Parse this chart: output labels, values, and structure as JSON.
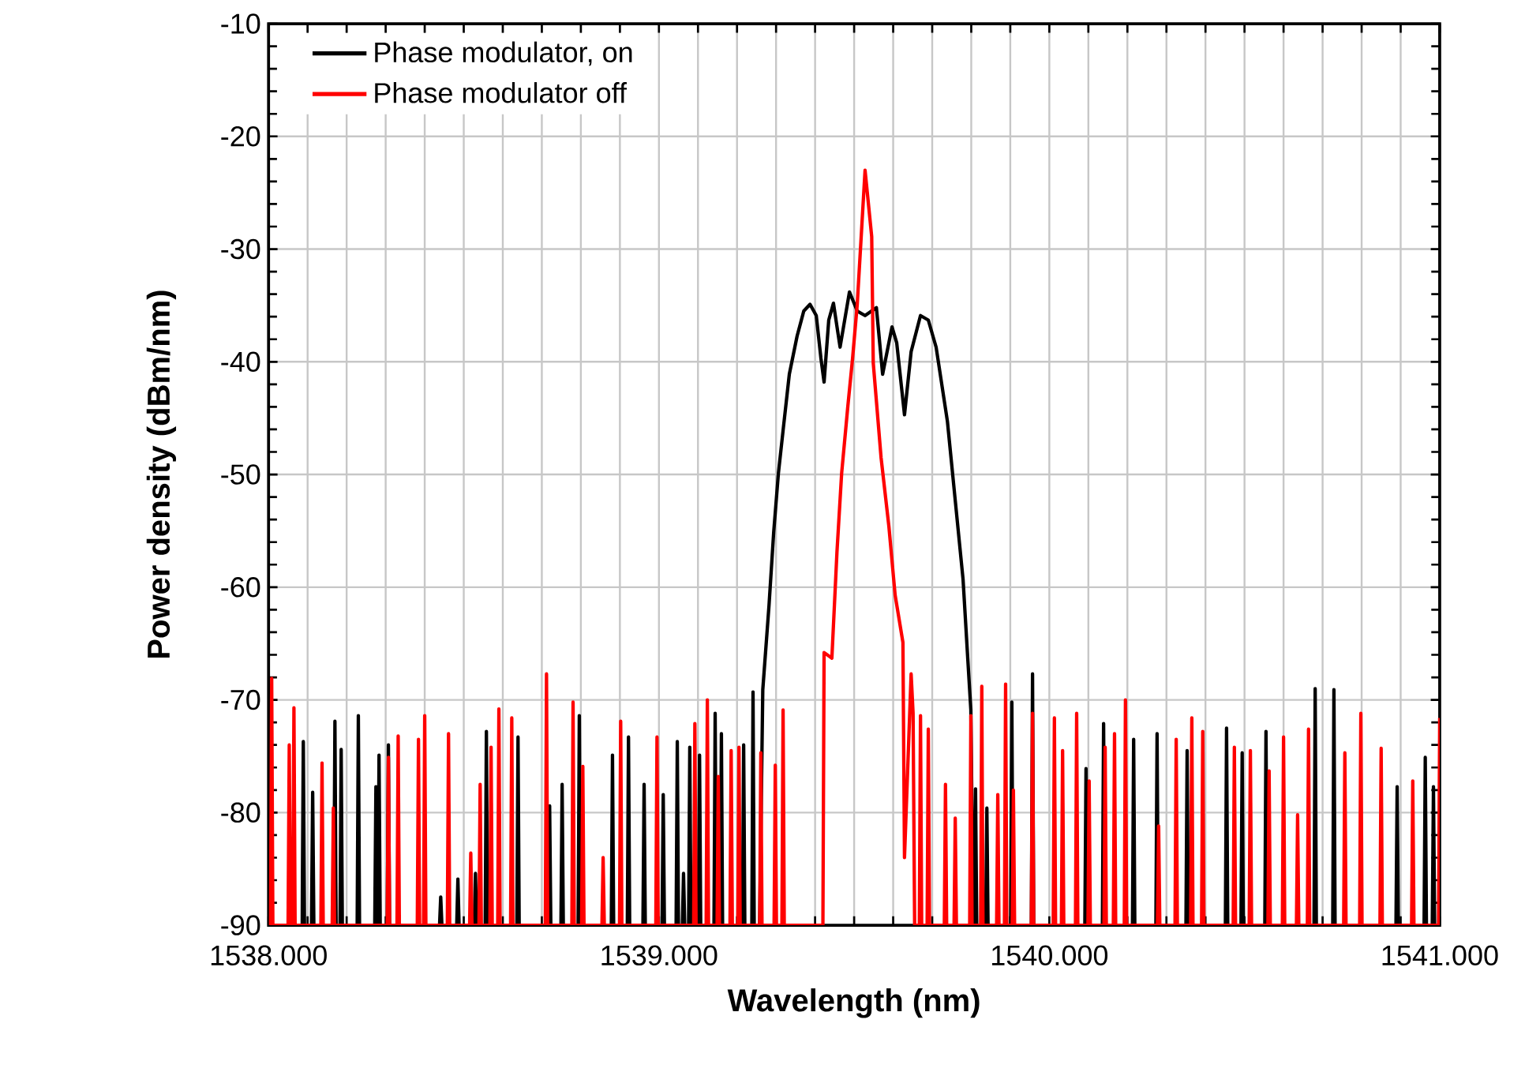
{
  "chart_data": {
    "type": "line",
    "xlabel": "Wavelength (nm)",
    "ylabel": "Power density (dBm/nm)",
    "xlim": [
      1538,
      1541
    ],
    "ylim": [
      -90,
      -10
    ],
    "xticks": [
      {
        "value": 1538.0,
        "label": "1538.000"
      },
      {
        "value": 1538.1,
        "label": null
      },
      {
        "value": 1538.2,
        "label": null
      },
      {
        "value": 1538.3,
        "label": null
      },
      {
        "value": 1538.4,
        "label": null
      },
      {
        "value": 1538.5,
        "label": null
      },
      {
        "value": 1538.6,
        "label": null
      },
      {
        "value": 1538.7,
        "label": null
      },
      {
        "value": 1538.8,
        "label": null
      },
      {
        "value": 1538.9,
        "label": null
      },
      {
        "value": 1539.0,
        "label": "1539.000"
      },
      {
        "value": 1539.1,
        "label": null
      },
      {
        "value": 1539.2,
        "label": null
      },
      {
        "value": 1539.3,
        "label": null
      },
      {
        "value": 1539.4,
        "label": null
      },
      {
        "value": 1539.5,
        "label": null
      },
      {
        "value": 1539.6,
        "label": null
      },
      {
        "value": 1539.7,
        "label": null
      },
      {
        "value": 1539.8,
        "label": null
      },
      {
        "value": 1539.9,
        "label": null
      },
      {
        "value": 1540.0,
        "label": "1540.000"
      },
      {
        "value": 1540.1,
        "label": null
      },
      {
        "value": 1540.2,
        "label": null
      },
      {
        "value": 1540.3,
        "label": null
      },
      {
        "value": 1540.4,
        "label": null
      },
      {
        "value": 1540.5,
        "label": null
      },
      {
        "value": 1540.6,
        "label": null
      },
      {
        "value": 1540.7,
        "label": null
      },
      {
        "value": 1540.8,
        "label": null
      },
      {
        "value": 1540.9,
        "label": null
      },
      {
        "value": 1541.0,
        "label": "1541.000"
      }
    ],
    "yticks": [
      -90,
      -80,
      -70,
      -60,
      -50,
      -40,
      -30,
      -20,
      -10
    ],
    "grid": true,
    "legend": "top left",
    "line_style": "solid",
    "series": [
      {
        "name": "Phase modulator, on",
        "color": "#000000",
        "x": [
          1538.086,
          1538.089,
          1538.092,
          1538.11,
          1538.113,
          1538.116,
          1538.167,
          1538.17,
          1538.173,
          1538.183,
          1538.186,
          1538.189,
          1538.227,
          1538.23,
          1538.233,
          1538.272,
          1538.275,
          1538.278,
          1538.28,
          1538.283,
          1538.286,
          1538.304,
          1538.307,
          1538.31,
          1538.438,
          1538.441,
          1538.444,
          1538.482,
          1538.485,
          1538.488,
          1538.527,
          1538.53,
          1538.533,
          1538.555,
          1538.558,
          1538.561,
          1538.636,
          1538.639,
          1538.642,
          1538.717,
          1538.72,
          1538.723,
          1538.749,
          1538.752,
          1538.755,
          1538.793,
          1538.796,
          1538.799,
          1538.878,
          1538.881,
          1538.884,
          1538.919,
          1538.922,
          1538.925,
          1538.959,
          1538.962,
          1538.965,
          1539.008,
          1539.011,
          1539.014,
          1539.044,
          1539.047,
          1539.05,
          1539.06,
          1539.063,
          1539.066,
          1539.076,
          1539.079,
          1539.082,
          1539.101,
          1539.104,
          1539.107,
          1539.141,
          1539.144,
          1539.147,
          1539.157,
          1539.16,
          1539.163,
          1539.214,
          1539.217,
          1539.22,
          1539.238,
          1539.241,
          1539.244,
          1539.258,
          1539.266,
          1539.282,
          1539.294,
          1539.306,
          1539.318,
          1539.334,
          1539.354,
          1539.371,
          1539.387,
          1539.403,
          1539.415,
          1539.423,
          1539.435,
          1539.447,
          1539.464,
          1539.488,
          1539.508,
          1539.528,
          1539.557,
          1539.573,
          1539.597,
          1539.609,
          1539.629,
          1539.646,
          1539.67,
          1539.69,
          1539.71,
          1539.739,
          1539.759,
          1539.779,
          1539.791,
          1539.799,
          1539.805,
          1539.808,
          1539.811,
          1539.814,
          1539.837,
          1539.84,
          1539.843,
          1539.901,
          1539.904,
          1539.907,
          1539.954,
          1539.957,
          1539.96,
          1540.091,
          1540.094,
          1540.097,
          1540.136,
          1540.139,
          1540.142,
          1540.213,
          1540.216,
          1540.219,
          1540.273,
          1540.276,
          1540.279,
          1540.35,
          1540.353,
          1540.356,
          1540.451,
          1540.454,
          1540.457,
          1540.491,
          1540.494,
          1540.497,
          1540.552,
          1540.555,
          1540.558,
          1540.678,
          1540.681,
          1540.684,
          1540.726,
          1540.729,
          1540.732,
          1540.888,
          1540.891,
          1540.894,
          1540.96,
          1540.963,
          1540.966,
          1540.981,
          1540.984,
          1540.987
        ],
        "values": [
          -90,
          -73.7,
          -90,
          -90,
          -78.2,
          -90,
          -90,
          -71.9,
          -90,
          -90,
          -74.4,
          -90,
          -90,
          -71.4,
          -90,
          -90,
          -77.7,
          -90,
          -90,
          -74.9,
          -90,
          -90,
          -74.0,
          -90,
          -90,
          -87.5,
          -90,
          -90,
          -85.9,
          -90,
          -90,
          -85.4,
          -90,
          -90,
          -72.8,
          -90,
          -90,
          -73.3,
          -90,
          -90,
          -79.4,
          -90,
          -90,
          -77.5,
          -90,
          -90,
          -71.4,
          -90,
          -90,
          -74.9,
          -90,
          -90,
          -73.3,
          -90,
          -90,
          -77.5,
          -90,
          -90,
          -78.4,
          -90,
          -90,
          -73.7,
          -90,
          -90,
          -85.4,
          -90,
          -90,
          -74.2,
          -90,
          -90,
          -74.9,
          -90,
          -90,
          -71.2,
          -90,
          -90,
          -73.0,
          -90,
          -90,
          -74.0,
          -90,
          -90,
          -69.3,
          -90,
          -90,
          -69.1,
          -61.6,
          -55.1,
          -49.9,
          -46.1,
          -41.1,
          -37.7,
          -35.5,
          -34.9,
          -35.9,
          -39.7,
          -41.8,
          -36.3,
          -34.8,
          -38.7,
          -33.8,
          -35.5,
          -35.9,
          -35.2,
          -41.1,
          -36.9,
          -38.3,
          -44.7,
          -39.1,
          -35.9,
          -36.3,
          -38.7,
          -45.3,
          -52.3,
          -59.3,
          -66.3,
          -70.9,
          -90,
          -90,
          -77.9,
          -90,
          -90,
          -79.6,
          -90,
          -90,
          -70.2,
          -90,
          -90,
          -67.7,
          -90,
          -90,
          -76.1,
          -90,
          -90,
          -72.1,
          -90,
          -90,
          -73.5,
          -90,
          -90,
          -73.0,
          -90,
          -90,
          -74.5,
          -90,
          -90,
          -72.5,
          -90,
          -90,
          -74.7,
          -90,
          -90,
          -72.8,
          -90,
          -90,
          -69.0,
          -90,
          -90,
          -69.1,
          -90,
          -90,
          -77.7,
          -90,
          -90,
          -75.1,
          -90,
          -90,
          -77.7,
          -90
        ]
      },
      {
        "name": "Phase modulator off",
        "color": "#ff0000",
        "x": [
          1538.005,
          1538.008,
          1538.011,
          1538.05,
          1538.053,
          1538.056,
          1538.062,
          1538.065,
          1538.068,
          1538.134,
          1538.137,
          1538.14,
          1538.163,
          1538.166,
          1538.169,
          1538.304,
          1538.307,
          1538.31,
          1538.329,
          1538.332,
          1538.335,
          1538.381,
          1538.384,
          1538.387,
          1538.397,
          1538.4,
          1538.403,
          1538.458,
          1538.461,
          1538.464,
          1538.515,
          1538.518,
          1538.521,
          1538.539,
          1538.542,
          1538.545,
          1538.567,
          1538.57,
          1538.573,
          1538.587,
          1538.59,
          1538.593,
          1538.62,
          1538.623,
          1538.626,
          1538.709,
          1538.712,
          1538.715,
          1538.777,
          1538.78,
          1538.783,
          1538.802,
          1538.805,
          1538.808,
          1538.854,
          1538.857,
          1538.86,
          1538.899,
          1538.902,
          1538.905,
          1538.992,
          1538.995,
          1538.998,
          1539.089,
          1539.092,
          1539.095,
          1539.121,
          1539.124,
          1539.127,
          1539.149,
          1539.152,
          1539.155,
          1539.182,
          1539.185,
          1539.188,
          1539.202,
          1539.205,
          1539.208,
          1539.258,
          1539.261,
          1539.264,
          1539.295,
          1539.298,
          1539.301,
          1539.315,
          1539.318,
          1539.321,
          1539.42,
          1539.423,
          1539.443,
          1539.456,
          1539.468,
          1539.484,
          1539.496,
          1539.508,
          1539.528,
          1539.545,
          1539.549,
          1539.569,
          1539.589,
          1539.605,
          1539.625,
          1539.629,
          1539.646,
          1539.651,
          1539.655,
          1539.667,
          1539.67,
          1539.673,
          1539.687,
          1539.69,
          1539.693,
          1539.731,
          1539.734,
          1539.737,
          1539.756,
          1539.759,
          1539.762,
          1539.796,
          1539.799,
          1539.802,
          1539.824,
          1539.827,
          1539.83,
          1539.865,
          1539.868,
          1539.871,
          1539.885,
          1539.888,
          1539.891,
          1539.905,
          1539.908,
          1539.911,
          1539.954,
          1539.957,
          1539.96,
          1540.01,
          1540.013,
          1540.016,
          1540.031,
          1540.034,
          1540.037,
          1540.067,
          1540.07,
          1540.073,
          1540.099,
          1540.102,
          1540.105,
          1540.14,
          1540.143,
          1540.146,
          1540.164,
          1540.167,
          1540.17,
          1540.192,
          1540.195,
          1540.198,
          1540.277,
          1540.28,
          1540.283,
          1540.322,
          1540.325,
          1540.328,
          1540.362,
          1540.365,
          1540.368,
          1540.39,
          1540.393,
          1540.396,
          1540.471,
          1540.474,
          1540.477,
          1540.512,
          1540.515,
          1540.518,
          1540.56,
          1540.563,
          1540.566,
          1540.597,
          1540.6,
          1540.603,
          1540.633,
          1540.636,
          1540.639,
          1540.661,
          1540.664,
          1540.667,
          1540.754,
          1540.757,
          1540.76,
          1540.795,
          1540.798,
          1540.801,
          1540.847,
          1540.85,
          1540.853,
          1540.928,
          1540.931,
          1540.934,
          1540.997,
          1541.0
        ],
        "values": [
          -90,
          -68.1,
          -90,
          -90,
          -74.0,
          -90,
          -90,
          -70.7,
          -90,
          -90,
          -75.6,
          -90,
          -90,
          -79.6,
          -90,
          -90,
          -75.1,
          -90,
          -90,
          -73.2,
          -90,
          -90,
          -73.5,
          -90,
          -90,
          -71.4,
          -90,
          -90,
          -73.0,
          -90,
          -90,
          -83.6,
          -90,
          -90,
          -77.5,
          -90,
          -90,
          -74.2,
          -90,
          -90,
          -70.8,
          -90,
          -90,
          -71.6,
          -90,
          -90,
          -67.7,
          -90,
          -90,
          -70.2,
          -90,
          -90,
          -75.9,
          -90,
          -90,
          -84.0,
          -90,
          -90,
          -71.9,
          -90,
          -90,
          -73.3,
          -90,
          -90,
          -72.1,
          -90,
          -90,
          -70.0,
          -90,
          -90,
          -76.8,
          -90,
          -90,
          -74.5,
          -90,
          -90,
          -74.2,
          -90,
          -90,
          -74.7,
          -90,
          -90,
          -75.8,
          -90,
          -90,
          -70.9,
          -90,
          -90,
          -65.8,
          -66.3,
          -56.9,
          -49.9,
          -43.9,
          -39.7,
          -34.9,
          -23.0,
          -28.9,
          -40.1,
          -48.5,
          -54.6,
          -60.7,
          -64.9,
          -84.0,
          -67.7,
          -71.2,
          -90,
          -90,
          -71.4,
          -90,
          -90,
          -72.6,
          -90,
          -90,
          -77.5,
          -90,
          -90,
          -80.5,
          -90,
          -90,
          -71.4,
          -90,
          -90,
          -68.8,
          -90,
          -90,
          -78.4,
          -90,
          -90,
          -68.6,
          -90,
          -90,
          -78.0,
          -90,
          -90,
          -71.2,
          -90,
          -90,
          -71.6,
          -90,
          -90,
          -74.5,
          -90,
          -90,
          -71.2,
          -90,
          -90,
          -77.2,
          -90,
          -90,
          -74.2,
          -90,
          -90,
          -73.0,
          -90,
          -90,
          -70.0,
          -90,
          -90,
          -81.2,
          -90,
          -90,
          -73.5,
          -90,
          -90,
          -71.6,
          -90,
          -90,
          -72.8,
          -90,
          -90,
          -74.2,
          -90,
          -90,
          -74.5,
          -90,
          -90,
          -76.3,
          -90,
          -90,
          -73.3,
          -90,
          -90,
          -80.2,
          -90,
          -90,
          -72.6,
          -90,
          -90,
          -74.7,
          -90,
          -90,
          -71.2,
          -90,
          -90,
          -74.3,
          -90,
          -90,
          -77.2,
          -90,
          -90,
          -71.6
        ]
      }
    ]
  }
}
